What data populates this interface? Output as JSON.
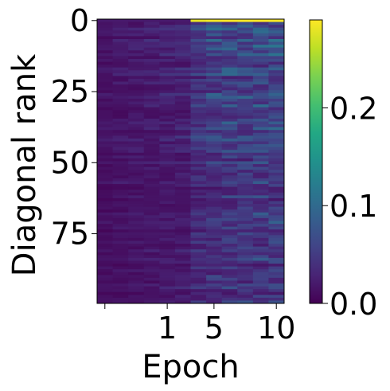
{
  "chart_data": {
    "type": "heatmap",
    "xlabel": "Epoch",
    "ylabel": "Diagonal rank",
    "x_ticks": [
      {
        "label": "",
        "index": 0
      },
      {
        "label": "1",
        "index": 4
      },
      {
        "label": "5",
        "index": 7
      },
      {
        "label": "10",
        "index": 11
      }
    ],
    "y_ticks": [
      0,
      25,
      50,
      75
    ],
    "n_columns": 12,
    "n_rows": 100,
    "colormap": "viridis",
    "colorbar": {
      "ticks": [
        "0.0",
        "0.1",
        "0.2"
      ],
      "tick_values": [
        0.0,
        0.1,
        0.2
      ],
      "range": [
        0.0,
        0.29
      ]
    },
    "column_profile": [
      0.015,
      0.018,
      0.02,
      0.022,
      0.025,
      0.028,
      0.045,
      0.052,
      0.055,
      0.058,
      0.06,
      0.062
    ],
    "row0_values": [
      0.02,
      0.02,
      0.02,
      0.02,
      0.02,
      0.02,
      0.28,
      0.285,
      0.29,
      0.29,
      0.29,
      0.29
    ]
  }
}
